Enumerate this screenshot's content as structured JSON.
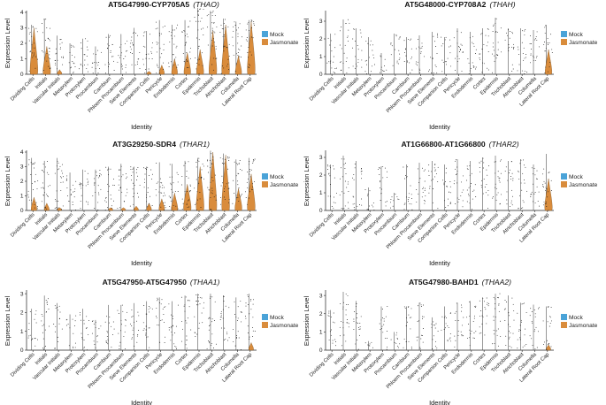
{
  "colors": {
    "mock": "#4aa3d8",
    "jasmonate": "#d98c3c"
  },
  "chart_data": [
    {
      "type": "violin",
      "title": "AT5G47990-CYP705A5",
      "gene_alias": "(THAO)",
      "xlabel": "Identity",
      "ylabel": "Expression Level",
      "ylim": [
        0,
        4
      ],
      "yticks": [
        0,
        1,
        2,
        3,
        4
      ],
      "categories": [
        "Dividing Cells",
        "Initials",
        "Vascular Initials",
        "Metaxylem",
        "Protoxylem",
        "Procambium",
        "Cambium",
        "Phloem Procambium",
        "Sieve Elements",
        "Companion Cells",
        "Pericycle",
        "Endodermis",
        "Cortex",
        "Epidermis",
        "Trichoblast",
        "Atrichoblast",
        "Columella",
        "Lateral Root Cap"
      ],
      "series": [
        {
          "name": "Mock",
          "max_expression": [
            3.2,
            3.6,
            2.5,
            2.0,
            2.3,
            1.8,
            2.6,
            2.6,
            3.0,
            2.8,
            3.5,
            3.2,
            3.5,
            4.3,
            4.1,
            3.6,
            3.4,
            3.5
          ]
        },
        {
          "name": "Jasmonate",
          "max_expression": [
            3.0,
            1.8,
            0.3,
            0,
            0,
            0,
            0,
            0,
            0,
            0.2,
            0.6,
            1.0,
            1.4,
            1.6,
            2.8,
            3.2,
            1.2,
            3.4
          ]
        }
      ],
      "legend": [
        "Mock",
        "Jasmonate"
      ]
    },
    {
      "type": "violin",
      "title": "AT5G48000-CYP708A2",
      "gene_alias": "(THAH)",
      "xlabel": "Identity",
      "ylabel": "Expression Level",
      "ylim": [
        0,
        3.5
      ],
      "yticks": [
        0,
        1,
        2,
        3
      ],
      "categories": [
        "Dividing Cells",
        "Initials",
        "Vascular Initials",
        "Metaxylem",
        "Protoxylem",
        "Procambium",
        "Cambium",
        "Phloem Procambium",
        "Sieve Elements",
        "Companion Cells",
        "Pericycle",
        "Endodermis",
        "Cortex",
        "Epidermis",
        "Trichoblast",
        "Atrichoblast",
        "Columella",
        "Lateral Root Cap"
      ],
      "series": [
        {
          "name": "Mock",
          "max_expression": [
            2.3,
            3.1,
            2.6,
            2.1,
            1.2,
            2.3,
            2.1,
            2.2,
            2.4,
            2.1,
            2.6,
            2.4,
            2.6,
            3.2,
            2.6,
            2.6,
            2.5,
            2.8
          ]
        },
        {
          "name": "Jasmonate",
          "max_expression": [
            0,
            0,
            0,
            0,
            0,
            0,
            0,
            0,
            0,
            0,
            0,
            0,
            0,
            0,
            0,
            0,
            0,
            1.4
          ]
        }
      ],
      "legend": [
        "Mock",
        "Jasmonate"
      ]
    },
    {
      "type": "violin",
      "title": "AT3G29250-SDR4",
      "gene_alias": "(THAR1)",
      "xlabel": "Identity",
      "ylabel": "Expression Level",
      "ylim": [
        0,
        4
      ],
      "yticks": [
        0,
        1,
        2,
        3,
        4
      ],
      "categories": [
        "Dividing Cells",
        "Initials",
        "Vascular Initials",
        "Metaxylem",
        "Protoxylem",
        "Procambium",
        "Cambium",
        "Phloem Procambium",
        "Sieve Elements",
        "Companion Cells",
        "Pericycle",
        "Endodermis",
        "Cortex",
        "Epidermis",
        "Trichoblast",
        "Atrichoblast",
        "Columella",
        "Lateral Root Cap"
      ],
      "series": [
        {
          "name": "Mock",
          "max_expression": [
            3.6,
            3.4,
            3.6,
            2.6,
            2.8,
            2.8,
            3.0,
            3.2,
            3.0,
            3.0,
            3.3,
            3.2,
            3.4,
            3.6,
            4.1,
            3.9,
            3.5,
            3.6
          ]
        },
        {
          "name": "Jasmonate",
          "max_expression": [
            0.9,
            0.5,
            0.2,
            0,
            0,
            0,
            0.2,
            0.2,
            0.3,
            0.5,
            0.8,
            1.2,
            1.8,
            3.0,
            4.0,
            3.8,
            1.5,
            2.5
          ]
        }
      ],
      "legend": [
        "Mock",
        "Jasmonate"
      ]
    },
    {
      "type": "violin",
      "title": "AT1G66800-AT1G66800",
      "gene_alias": "(THAR2)",
      "xlabel": "Identity",
      "ylabel": "Expression Level",
      "ylim": [
        0,
        3.3
      ],
      "yticks": [
        0,
        1,
        2,
        3
      ],
      "categories": [
        "Dividing Cells",
        "Initials",
        "Vascular Initials",
        "Metaxylem",
        "Protoxylem",
        "Procambium",
        "Cambium",
        "Phloem Procambium",
        "Sieve Elements",
        "Companion Cells",
        "Pericycle",
        "Endodermis",
        "Cortex",
        "Epidermis",
        "Trichoblast",
        "Atrichoblast",
        "Columella",
        "Lateral Root Cap"
      ],
      "series": [
        {
          "name": "Mock",
          "max_expression": [
            2.6,
            3.1,
            2.8,
            1.3,
            2.5,
            1.0,
            2.6,
            2.7,
            2.8,
            2.6,
            2.9,
            2.8,
            3.0,
            3.1,
            2.8,
            2.9,
            2.6,
            3.2
          ]
        },
        {
          "name": "Jasmonate",
          "max_expression": [
            0,
            0,
            0,
            0,
            0,
            0,
            0,
            0,
            0,
            0,
            0,
            0,
            0,
            0,
            0,
            0,
            0,
            1.8
          ]
        }
      ],
      "legend": [
        "Mock",
        "Jasmonate"
      ]
    },
    {
      "type": "violin",
      "title": "AT5G47950-AT5G47950",
      "gene_alias": "(THAA1)",
      "xlabel": "Identity",
      "ylabel": "Expression Level",
      "ylim": [
        0,
        3.1
      ],
      "yticks": [
        0,
        1,
        2,
        3
      ],
      "categories": [
        "Dividing Cells",
        "Initials",
        "Vascular Initials",
        "Metaxylem",
        "Protoxylem",
        "Procambium",
        "Cambium",
        "Phloem Procambium",
        "Sieve Elements",
        "Companion Cells",
        "Pericycle",
        "Endodermis",
        "Cortex",
        "Epidermis",
        "Trichoblast",
        "Atrichoblast",
        "Columella",
        "Lateral Root Cap"
      ],
      "series": [
        {
          "name": "Mock",
          "max_expression": [
            2.2,
            2.9,
            2.5,
            1.9,
            2.2,
            1.6,
            2.4,
            2.4,
            2.5,
            2.6,
            2.8,
            2.6,
            2.9,
            3.0,
            3.0,
            2.9,
            2.8,
            3.0
          ]
        },
        {
          "name": "Jasmonate",
          "max_expression": [
            0,
            0,
            0,
            0,
            0,
            0,
            0,
            0,
            0,
            0,
            0,
            0,
            0,
            0,
            0,
            0,
            0,
            0.4
          ]
        }
      ],
      "legend": [
        "Mock",
        "Jasmonate"
      ]
    },
    {
      "type": "violin",
      "title": "AT5G47980-BAHD1",
      "gene_alias": "(THAA2)",
      "xlabel": "Identity",
      "ylabel": "Expression Level",
      "ylim": [
        0,
        3.2
      ],
      "yticks": [
        0,
        1,
        2,
        3
      ],
      "categories": [
        "Dividing Cells",
        "Initials",
        "Vascular Initials",
        "Metaxylem",
        "Protoxylem",
        "Procambium",
        "Cambium",
        "Phloem Procambium",
        "Sieve Elements",
        "Companion Cells",
        "Pericycle",
        "Endodermis",
        "Cortex",
        "Epidermis",
        "Trichoblast",
        "Atrichoblast",
        "Columella",
        "Lateral Root Cap"
      ],
      "series": [
        {
          "name": "Mock",
          "max_expression": [
            2.2,
            3.2,
            2.7,
            0.5,
            2.4,
            1.0,
            2.4,
            2.6,
            1.8,
            2.4,
            2.6,
            2.7,
            2.9,
            3.1,
            3.0,
            2.6,
            2.5,
            2.4
          ]
        },
        {
          "name": "Jasmonate",
          "max_expression": [
            0,
            0,
            0,
            0,
            0,
            0,
            0,
            0,
            0,
            0,
            0,
            0,
            0,
            0,
            0,
            0,
            0,
            0.3
          ]
        }
      ],
      "legend": [
        "Mock",
        "Jasmonate"
      ]
    }
  ]
}
